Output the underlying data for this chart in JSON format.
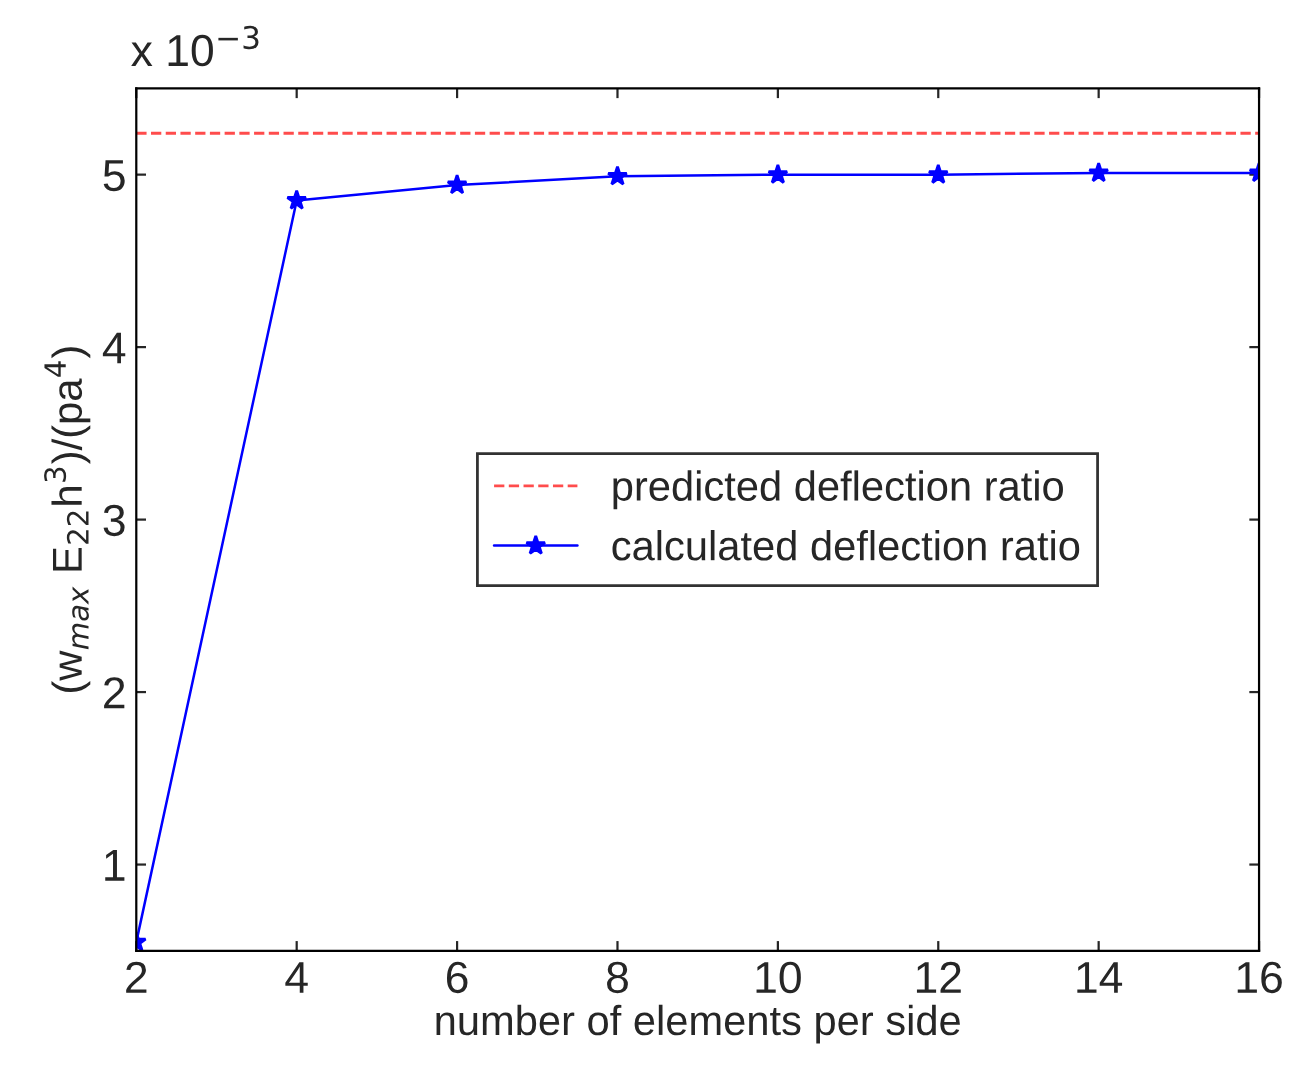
{
  "chart_data": {
    "type": "line",
    "xlabel": "number of elements per side",
    "ylabel": "(w$_{max}$ E$_{22}$h$^{3}$)/(pa$^{4}$)",
    "annotations": [
      "x 10$^{−3}$"
    ],
    "x": [
      2,
      4,
      6,
      8,
      10,
      12,
      14,
      16
    ],
    "series": [
      {
        "name": "calculated deflection ratio",
        "color": "#0000ff",
        "values": [
          0.55,
          4.85,
          4.94,
          4.99,
          5.0,
          5.0,
          5.01,
          5.01
        ],
        "marker": "star",
        "line_style": "solid"
      }
    ],
    "ref_lines": [
      {
        "axis": "y",
        "value": 5.24,
        "label": "predicted deflection ratio",
        "color": "#ff4c4c",
        "line_style": "dashed"
      }
    ],
    "xlim": [
      2,
      16
    ],
    "xticks": [
      2,
      4,
      6,
      8,
      10,
      12,
      14,
      16
    ],
    "ylim": [
      0.5,
      5.5
    ],
    "yticks": [
      1,
      2,
      3,
      4,
      5
    ],
    "grid": false,
    "legend": "center"
  }
}
